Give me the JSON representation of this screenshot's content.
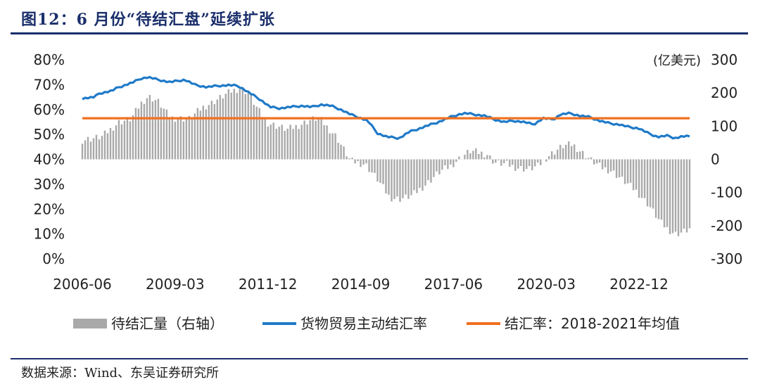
{
  "header": {
    "title": "图12：6 月份“待结汇盘”延续扩张"
  },
  "footer": {
    "source": "数据来源：Wind、东吴证券研究所"
  },
  "chart_data": {
    "type": "bar+line",
    "left_axis": {
      "ticks": [
        "0%",
        "10%",
        "20%",
        "30%",
        "40%",
        "50%",
        "60%",
        "70%",
        "80%"
      ],
      "ylim": [
        0,
        80
      ]
    },
    "right_axis": {
      "unit": "(亿美元)",
      "ticks": [
        "-300",
        "-200",
        "-100",
        "0",
        "100",
        "200",
        "300"
      ],
      "ylim": [
        -300,
        300
      ]
    },
    "x_ticks": [
      "2006-06",
      "2009-03",
      "2011-12",
      "2014-09",
      "2017-06",
      "2020-03",
      "2022-12"
    ],
    "x_range": [
      "2006-06",
      "2024-06"
    ],
    "series": [
      {
        "name": "待结汇量（右轴）",
        "kind": "bar",
        "color": "#a9a9a9",
        "axis": "right",
        "anchors": [
          [
            0,
            58
          ],
          [
            8,
            68
          ],
          [
            15,
            112
          ],
          [
            20,
            122
          ],
          [
            24,
            168
          ],
          [
            27,
            190
          ],
          [
            31,
            175
          ],
          [
            36,
            125
          ],
          [
            44,
            122
          ],
          [
            49,
            155
          ],
          [
            53,
            170
          ],
          [
            61,
            205
          ],
          [
            65,
            215
          ],
          [
            68,
            200
          ],
          [
            72,
            150
          ],
          [
            76,
            110
          ],
          [
            80,
            100
          ],
          [
            84,
            90
          ],
          [
            88,
            100
          ],
          [
            94,
            120
          ],
          [
            97,
            125
          ],
          [
            100,
            100
          ],
          [
            104,
            70
          ],
          [
            108,
            20
          ],
          [
            110,
            -5
          ],
          [
            116,
            -15
          ],
          [
            121,
            -60
          ],
          [
            126,
            -115
          ],
          [
            130,
            -120
          ],
          [
            135,
            -110
          ],
          [
            141,
            -75
          ],
          [
            146,
            -40
          ],
          [
            151,
            -20
          ],
          [
            155,
            5
          ],
          [
            159,
            25
          ],
          [
            163,
            20
          ],
          [
            166,
            15
          ],
          [
            169,
            -10
          ],
          [
            174,
            -15
          ],
          [
            178,
            -25
          ],
          [
            183,
            -30
          ],
          [
            187,
            -20
          ],
          [
            191,
            10
          ],
          [
            197,
            40
          ],
          [
            201,
            45
          ],
          [
            205,
            20
          ],
          [
            209,
            -5
          ],
          [
            213,
            -25
          ],
          [
            217,
            -35
          ],
          [
            222,
            -65
          ],
          [
            227,
            -95
          ],
          [
            232,
            -135
          ],
          [
            237,
            -190
          ],
          [
            240,
            -210
          ],
          [
            243,
            -225
          ],
          [
            246,
            -220
          ],
          [
            249,
            -210
          ]
        ]
      },
      {
        "name": "货物贸易主动结汇率",
        "kind": "line",
        "color": "#1f7ac8",
        "axis": "left",
        "anchors": [
          [
            0,
            64.5
          ],
          [
            5,
            65
          ],
          [
            7,
            66.5
          ],
          [
            12,
            67.5
          ],
          [
            15,
            69
          ],
          [
            18,
            70
          ],
          [
            21,
            71
          ],
          [
            24,
            72.5
          ],
          [
            27,
            73
          ],
          [
            31,
            72
          ],
          [
            36,
            71
          ],
          [
            42,
            72
          ],
          [
            46,
            70
          ],
          [
            51,
            69
          ],
          [
            55,
            69.5
          ],
          [
            60,
            69.8
          ],
          [
            64,
            69.5
          ],
          [
            68,
            67
          ],
          [
            73,
            64
          ],
          [
            77,
            61
          ],
          [
            81,
            60.5
          ],
          [
            85,
            61
          ],
          [
            90,
            61.5
          ],
          [
            94,
            61
          ],
          [
            98,
            62
          ],
          [
            102,
            61.5
          ],
          [
            106,
            60
          ],
          [
            110,
            58
          ],
          [
            113,
            57
          ],
          [
            117,
            55.5
          ],
          [
            121,
            50.5
          ],
          [
            125,
            49
          ],
          [
            130,
            48.5
          ],
          [
            134,
            51
          ],
          [
            140,
            53
          ],
          [
            146,
            55
          ],
          [
            151,
            57
          ],
          [
            154,
            58
          ],
          [
            157,
            58.5
          ],
          [
            161,
            58
          ],
          [
            165,
            57.5
          ],
          [
            169,
            56
          ],
          [
            173,
            55
          ],
          [
            177,
            55.5
          ],
          [
            181,
            55
          ],
          [
            185,
            54
          ],
          [
            189,
            56.5
          ],
          [
            193,
            56
          ],
          [
            196,
            58
          ],
          [
            200,
            58.5
          ],
          [
            204,
            57.5
          ],
          [
            208,
            57
          ],
          [
            212,
            55.5
          ],
          [
            216,
            54.5
          ],
          [
            220,
            54
          ],
          [
            224,
            53
          ],
          [
            228,
            52.5
          ],
          [
            232,
            50.5
          ],
          [
            236,
            49
          ],
          [
            240,
            49.5
          ],
          [
            243,
            48.5
          ],
          [
            246,
            49.2
          ],
          [
            249,
            49.2
          ]
        ]
      },
      {
        "name": "结汇率：2018-2021年均值",
        "kind": "line",
        "color": "#f07020",
        "axis": "left",
        "value": 56.5
      }
    ]
  }
}
